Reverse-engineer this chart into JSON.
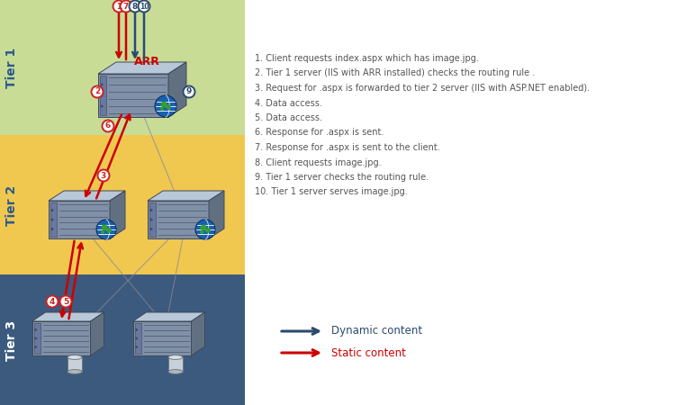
{
  "tier1_color": "#c8dc96",
  "tier2_color": "#f0c850",
  "tier3_color": "#3c5a7d",
  "tier1_label": "Tier 1",
  "tier2_label": "Tier 2",
  "tier3_label": "Tier 3",
  "tier_label_color": "#2c5a8c",
  "arr_label": "ARR",
  "arr_color": "#cc0000",
  "dynamic_color": "#2c4a6e",
  "static_color": "#cc0000",
  "legend_dynamic": "Dynamic content",
  "legend_static": "Static content",
  "notes": [
    "1. Client requests index.aspx which has image.jpg.",
    "2. Tier 1 server (IIS with ARR installed) checks the routing rule .",
    "3. Request for .aspx is forwarded to tier 2 server (IIS with ASP.NET enabled).",
    "4. Data access.",
    "5. Data access.",
    "6. Response for .aspx is sent.",
    "7. Response for .aspx is sent to the client.",
    "8. Client requests image.jpg.",
    "9. Tier 1 server checks the routing rule.",
    "10. Tier 1 server serves image.jpg."
  ],
  "text_color": "#555555"
}
